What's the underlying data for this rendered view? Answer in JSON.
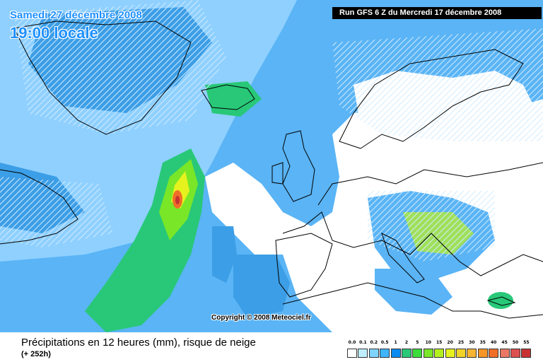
{
  "header": {
    "date": "Samedi 27 décembre 2008",
    "time": "19:00 locale",
    "run": "Run GFS 6 Z du Mercredi 17 décembre 2008"
  },
  "copyright": "Copyright © 2008 Meteociel.fr",
  "footer": {
    "title": "Précipitations en 12 heures (mm), risque de neige",
    "lead": "(+ 252h)"
  },
  "legend": {
    "labels": [
      "0.0",
      "0.1",
      "0.2",
      "0.5",
      "1",
      "2",
      "5",
      "10",
      "15",
      "20",
      "25",
      "30",
      "35",
      "40",
      "45",
      "50",
      "55"
    ],
    "colors": [
      "#ffffff",
      "#bfefff",
      "#7fd4ff",
      "#3fb4ff",
      "#0a8cf0",
      "#28c878",
      "#3cdc3c",
      "#7ae628",
      "#b4f020",
      "#e6f21e",
      "#f0d228",
      "#f5b432",
      "#f59628",
      "#ef6e28",
      "#e87864",
      "#dc5050",
      "#c83232"
    ]
  },
  "map": {
    "ocean": "#5ab4f5",
    "dry": "#ffffff",
    "coast": "#000000",
    "snow_hatch": "#c8e6ff"
  }
}
